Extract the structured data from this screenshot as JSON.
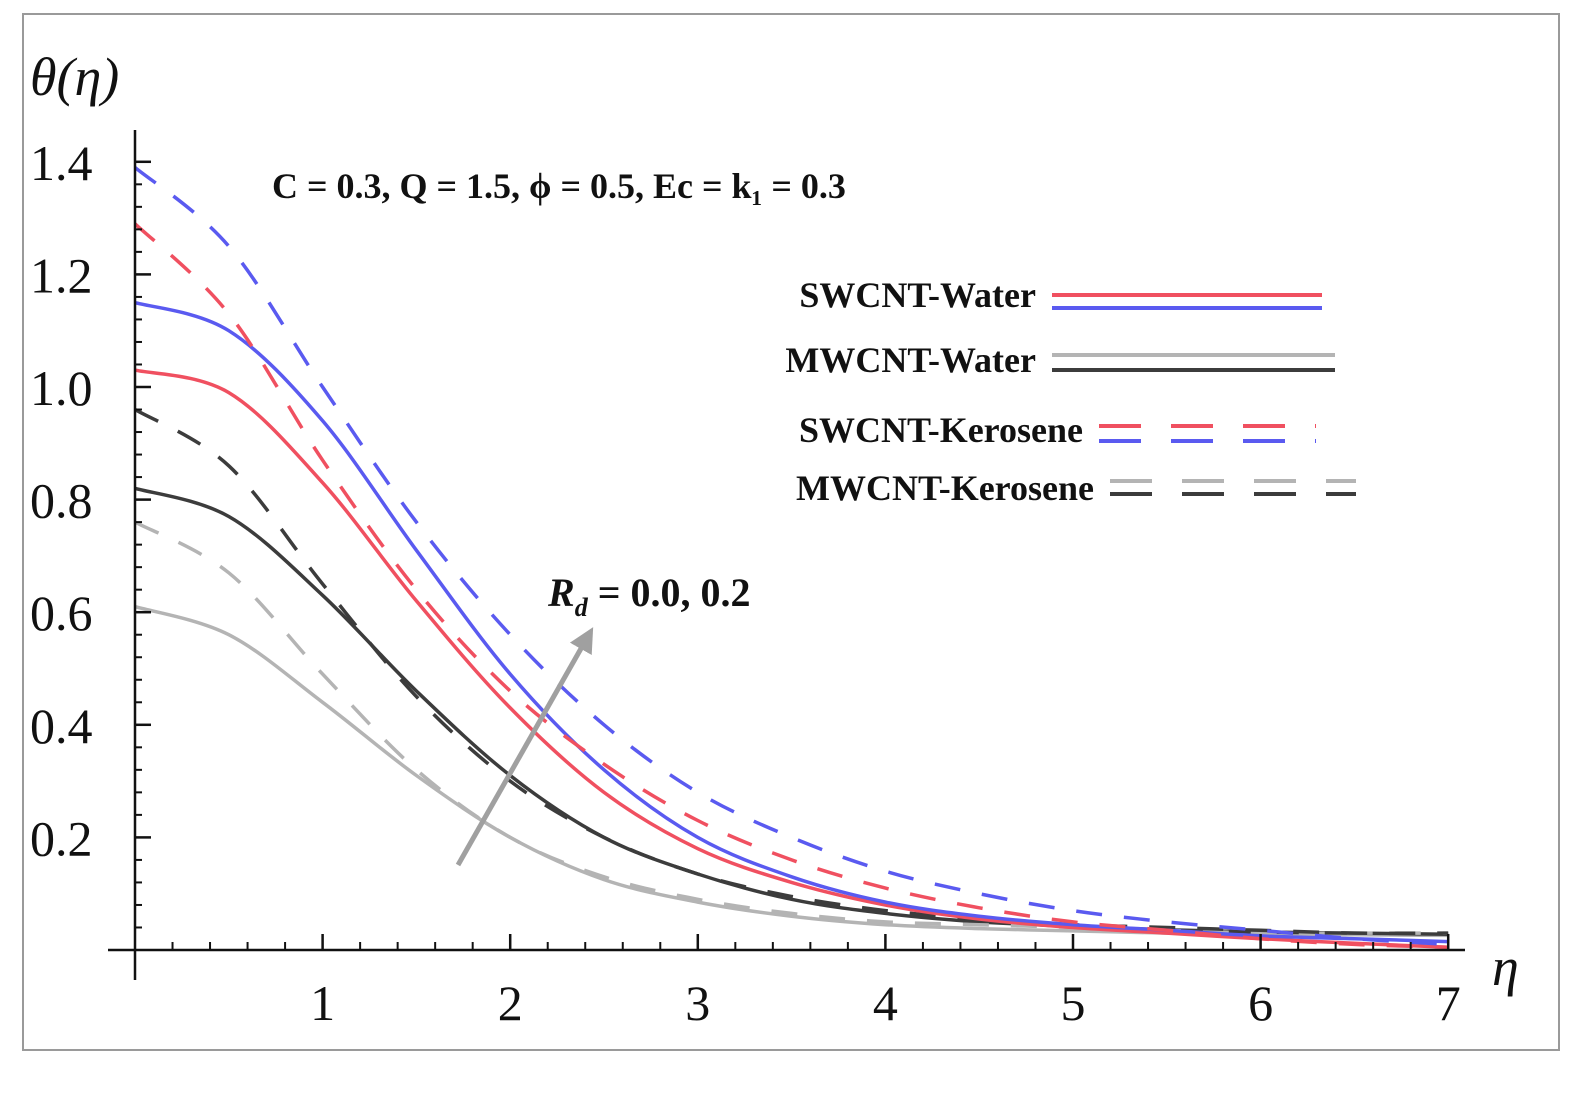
{
  "chart_data": {
    "type": "line",
    "xlabel": "η",
    "ylabel": "θ(η)",
    "xlim": [
      0,
      7
    ],
    "ylim": [
      0,
      1.42
    ],
    "xticks": [
      "1",
      "2",
      "3",
      "4",
      "5",
      "6",
      "7"
    ],
    "yticks": [
      "0.2",
      "0.4",
      "0.6",
      "0.8",
      "1.0",
      "1.2",
      "1.4"
    ],
    "parameters_label": "C = 0.3, Q = 1.5, ϕ = 0.5, Ec = k₁ = 0.3",
    "arrow_label": "R_d = 0.0, 0.2",
    "arrow_label_main": "R",
    "arrow_label_sub": "d",
    "arrow_label_rest": " = 0.0, 0.2",
    "legend": [
      {
        "label": "SWCNT-Water",
        "style": "solid",
        "colors": [
          "#f05060",
          "#5a5af0"
        ]
      },
      {
        "label": "MWCNT-Water",
        "style": "solid",
        "colors": [
          "#b4b4b4",
          "#3c3c3c"
        ]
      },
      {
        "label": "SWCNT-Kerosene",
        "style": "dashed",
        "colors": [
          "#f05060",
          "#5a5af0"
        ]
      },
      {
        "label": "MWCNT-Kerosene",
        "style": "dashed",
        "colors": [
          "#b4b4b4",
          "#3c3c3c"
        ]
      }
    ],
    "x": [
      0,
      0.5,
      1,
      1.5,
      2,
      2.5,
      3,
      3.5,
      4,
      4.5,
      5,
      5.5,
      6,
      6.5,
      7
    ],
    "series": [
      {
        "name": "MWCNT-Water, Rd = 0.0",
        "color": "#b4b4b4",
        "style": "solid",
        "values": [
          0.61,
          0.56,
          0.44,
          0.31,
          0.2,
          0.125,
          0.085,
          0.06,
          0.045,
          0.038,
          0.034,
          0.03,
          0.028,
          0.027,
          0.026
        ]
      },
      {
        "name": "MWCNT-Water, Rd = 0.2",
        "color": "#3c3c3c",
        "style": "solid",
        "values": [
          0.82,
          0.77,
          0.63,
          0.46,
          0.31,
          0.2,
          0.135,
          0.09,
          0.065,
          0.05,
          0.042,
          0.036,
          0.032,
          0.03,
          0.028
        ]
      },
      {
        "name": "MWCNT-Kerosene, Rd = 0.0",
        "color": "#b4b4b4",
        "style": "dashed",
        "values": [
          0.76,
          0.67,
          0.49,
          0.32,
          0.2,
          0.13,
          0.09,
          0.065,
          0.05,
          0.045,
          0.04,
          0.035,
          0.03,
          0.03,
          0.03
        ]
      },
      {
        "name": "MWCNT-Kerosene, Rd = 0.2",
        "color": "#3c3c3c",
        "style": "dashed",
        "values": [
          0.96,
          0.86,
          0.65,
          0.45,
          0.3,
          0.2,
          0.135,
          0.095,
          0.07,
          0.055,
          0.045,
          0.04,
          0.035,
          0.03,
          0.03
        ]
      },
      {
        "name": "SWCNT-Water, Rd = 0.0",
        "color": "#f05060",
        "style": "solid",
        "values": [
          1.03,
          0.99,
          0.83,
          0.62,
          0.43,
          0.28,
          0.18,
          0.12,
          0.08,
          0.055,
          0.04,
          0.03,
          0.02,
          0.012,
          0.005
        ]
      },
      {
        "name": "SWCNT-Water, Rd = 0.2",
        "color": "#5a5af0",
        "style": "solid",
        "values": [
          1.15,
          1.1,
          0.94,
          0.71,
          0.49,
          0.32,
          0.2,
          0.13,
          0.085,
          0.06,
          0.045,
          0.035,
          0.025,
          0.02,
          0.015
        ]
      },
      {
        "name": "SWCNT-Kerosene, Rd = 0.0",
        "color": "#f05060",
        "style": "dashed",
        "values": [
          1.29,
          1.13,
          0.87,
          0.64,
          0.46,
          0.33,
          0.23,
          0.16,
          0.11,
          0.075,
          0.05,
          0.035,
          0.02,
          0.01,
          0.005
        ]
      },
      {
        "name": "SWCNT-Kerosene, Rd = 0.2",
        "color": "#5a5af0",
        "style": "dashed",
        "values": [
          1.39,
          1.25,
          1.0,
          0.76,
          0.56,
          0.4,
          0.28,
          0.2,
          0.14,
          0.1,
          0.07,
          0.05,
          0.035,
          0.02,
          0.01
        ]
      }
    ]
  }
}
